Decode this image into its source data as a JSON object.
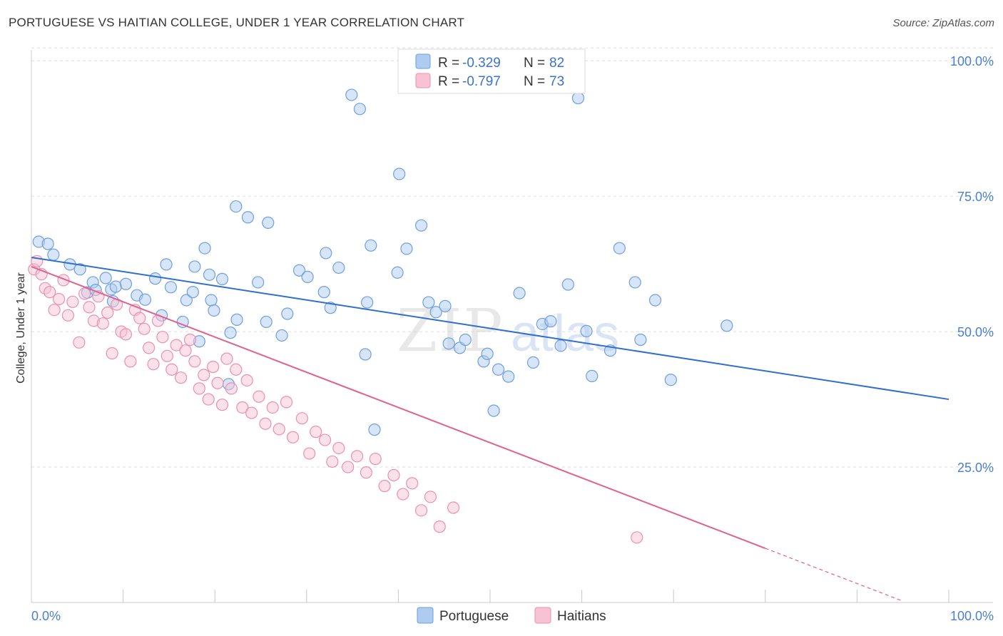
{
  "title": "PORTUGUESE VS HAITIAN COLLEGE, UNDER 1 YEAR CORRELATION CHART",
  "source": "Source: ZipAtlas.com",
  "watermark": {
    "zip": "ZIP",
    "atlas": "atlas"
  },
  "colors": {
    "portuguese_fill": "#aecbf0",
    "portuguese_stroke": "#6f9fdc",
    "portuguese_line": "#2f6fd0",
    "haitians_fill": "#f7c3d4",
    "haitians_stroke": "#ec8fb0",
    "haitians_line": "#e2608f",
    "grid": "#dddddd",
    "axis_text": "#4a7fd0"
  },
  "legend": {
    "rows": [
      {
        "r_label": "R =",
        "r_value": "-0.329",
        "n_label": "N =",
        "n_value": "82"
      },
      {
        "r_label": "R =",
        "r_value": "-0.797",
        "n_label": "N =",
        "n_value": "73"
      }
    ]
  },
  "chart_data": {
    "type": "scatter",
    "title": "PORTUGUESE VS HAITIAN COLLEGE, UNDER 1 YEAR CORRELATION CHART",
    "xlabel": "",
    "ylabel": "College, Under 1 year",
    "xlim": [
      0,
      100
    ],
    "ylim": [
      0,
      102
    ],
    "x_tick_labels": [
      "0.0%",
      "100.0%"
    ],
    "y_tick_labels": [
      "100.0%",
      "75.0%",
      "50.0%",
      "25.0%"
    ],
    "y_ticks": [
      100,
      75,
      50,
      25
    ],
    "legend_position": "top-center",
    "series": [
      {
        "name": "Portuguese",
        "r": -0.329,
        "n": 82,
        "trend": {
          "x0": 0,
          "y0": 63.7,
          "x1": 100,
          "y1": 37.5
        },
        "points": [
          [
            0.8,
            66.6
          ],
          [
            1.8,
            66.2
          ],
          [
            2.4,
            64.2
          ],
          [
            4.2,
            62.4
          ],
          [
            5.3,
            61.5
          ],
          [
            6.1,
            57.2
          ],
          [
            6.7,
            59.1
          ],
          [
            7.0,
            57.7
          ],
          [
            8.1,
            59.9
          ],
          [
            8.7,
            57.8
          ],
          [
            9.2,
            58.3
          ],
          [
            8.9,
            55.6
          ],
          [
            10.3,
            58.8
          ],
          [
            11.5,
            56.7
          ],
          [
            13.5,
            59.8
          ],
          [
            12.4,
            55.9
          ],
          [
            14.2,
            53.0
          ],
          [
            14.7,
            62.4
          ],
          [
            15.2,
            58.2
          ],
          [
            16.5,
            51.8
          ],
          [
            16.9,
            55.8
          ],
          [
            17.6,
            57.3
          ],
          [
            17.8,
            62.0
          ],
          [
            18.3,
            48.2
          ],
          [
            18.9,
            65.4
          ],
          [
            19.4,
            60.5
          ],
          [
            19.6,
            55.8
          ],
          [
            19.9,
            53.9
          ],
          [
            21.7,
            49.8
          ],
          [
            22.4,
            52.2
          ],
          [
            21.5,
            40.3
          ],
          [
            20.8,
            59.7
          ],
          [
            22.3,
            73.1
          ],
          [
            23.6,
            71.1
          ],
          [
            24.7,
            59.1
          ],
          [
            25.8,
            70.1
          ],
          [
            25.6,
            51.8
          ],
          [
            27.3,
            49.3
          ],
          [
            27.9,
            53.3
          ],
          [
            29.2,
            61.3
          ],
          [
            30.1,
            60.1
          ],
          [
            31.9,
            57.3
          ],
          [
            32.1,
            64.5
          ],
          [
            32.6,
            54.4
          ],
          [
            33.5,
            61.8
          ],
          [
            34.9,
            93.7
          ],
          [
            35.8,
            91.1
          ],
          [
            36.6,
            55.4
          ],
          [
            36.4,
            45.8
          ],
          [
            37.0,
            65.9
          ],
          [
            37.4,
            31.9
          ],
          [
            39.9,
            60.9
          ],
          [
            40.1,
            79.1
          ],
          [
            40.9,
            65.3
          ],
          [
            42.5,
            69.6
          ],
          [
            43.3,
            55.4
          ],
          [
            44.1,
            53.6
          ],
          [
            45.5,
            47.8
          ],
          [
            46.7,
            47.0
          ],
          [
            45.1,
            54.7
          ],
          [
            47.3,
            48.5
          ],
          [
            49.3,
            44.5
          ],
          [
            49.7,
            45.9
          ],
          [
            50.4,
            35.4
          ],
          [
            50.9,
            43.0
          ],
          [
            52.0,
            41.7
          ],
          [
            53.2,
            57.1
          ],
          [
            54.7,
            44.3
          ],
          [
            55.7,
            51.4
          ],
          [
            56.6,
            51.9
          ],
          [
            57.7,
            47.4
          ],
          [
            58.5,
            58.7
          ],
          [
            59.6,
            93.1
          ],
          [
            60.5,
            50.1
          ],
          [
            61.1,
            41.8
          ],
          [
            63.1,
            46.5
          ],
          [
            64.1,
            65.4
          ],
          [
            65.8,
            59.1
          ],
          [
            66.4,
            48.5
          ],
          [
            68.0,
            55.8
          ],
          [
            69.7,
            41.1
          ],
          [
            75.8,
            51.1
          ]
        ]
      },
      {
        "name": "Haitians",
        "r": -0.797,
        "n": 73,
        "trend": {
          "x0": 0,
          "y0": 62.0,
          "x1": 80,
          "y1": 10.0,
          "dashed_to_x": 95
        },
        "points": [
          [
            0.3,
            61.5
          ],
          [
            0.6,
            63.0
          ],
          [
            1.1,
            60.6
          ],
          [
            1.5,
            58.0
          ],
          [
            2.0,
            57.3
          ],
          [
            2.5,
            54.0
          ],
          [
            3.0,
            56.0
          ],
          [
            3.5,
            59.5
          ],
          [
            4.0,
            53.0
          ],
          [
            4.5,
            55.5
          ],
          [
            5.2,
            48.0
          ],
          [
            5.8,
            57.0
          ],
          [
            6.3,
            54.5
          ],
          [
            6.8,
            52.0
          ],
          [
            7.3,
            56.5
          ],
          [
            7.8,
            51.5
          ],
          [
            8.3,
            53.5
          ],
          [
            8.8,
            46.0
          ],
          [
            9.3,
            55.0
          ],
          [
            9.8,
            50.0
          ],
          [
            10.3,
            49.5
          ],
          [
            10.8,
            44.5
          ],
          [
            11.3,
            54.0
          ],
          [
            11.8,
            52.5
          ],
          [
            12.3,
            50.5
          ],
          [
            12.8,
            47.0
          ],
          [
            13.3,
            44.0
          ],
          [
            13.8,
            52.0
          ],
          [
            14.3,
            49.0
          ],
          [
            14.8,
            45.5
          ],
          [
            15.3,
            43.0
          ],
          [
            15.8,
            47.5
          ],
          [
            16.3,
            41.5
          ],
          [
            16.8,
            46.5
          ],
          [
            17.3,
            48.5
          ],
          [
            17.8,
            44.5
          ],
          [
            18.3,
            39.5
          ],
          [
            18.8,
            42.0
          ],
          [
            19.3,
            37.5
          ],
          [
            19.8,
            43.5
          ],
          [
            20.3,
            40.5
          ],
          [
            20.8,
            36.5
          ],
          [
            21.3,
            45.0
          ],
          [
            21.8,
            39.5
          ],
          [
            22.3,
            43.0
          ],
          [
            23.0,
            36.0
          ],
          [
            23.5,
            41.0
          ],
          [
            24.0,
            35.0
          ],
          [
            24.8,
            38.0
          ],
          [
            25.5,
            33.0
          ],
          [
            26.3,
            36.0
          ],
          [
            27.0,
            32.0
          ],
          [
            27.8,
            37.0
          ],
          [
            28.5,
            30.5
          ],
          [
            29.5,
            34.0
          ],
          [
            30.3,
            27.5
          ],
          [
            31.0,
            31.5
          ],
          [
            32.0,
            30.0
          ],
          [
            32.8,
            26.0
          ],
          [
            33.5,
            28.5
          ],
          [
            34.5,
            25.0
          ],
          [
            35.5,
            27.0
          ],
          [
            36.5,
            24.0
          ],
          [
            37.5,
            26.5
          ],
          [
            38.5,
            21.5
          ],
          [
            39.5,
            23.5
          ],
          [
            40.5,
            20.0
          ],
          [
            41.5,
            22.0
          ],
          [
            42.5,
            17.0
          ],
          [
            43.5,
            19.5
          ],
          [
            44.5,
            14.0
          ],
          [
            46.0,
            17.5
          ],
          [
            66.0,
            12.0
          ]
        ]
      }
    ]
  }
}
